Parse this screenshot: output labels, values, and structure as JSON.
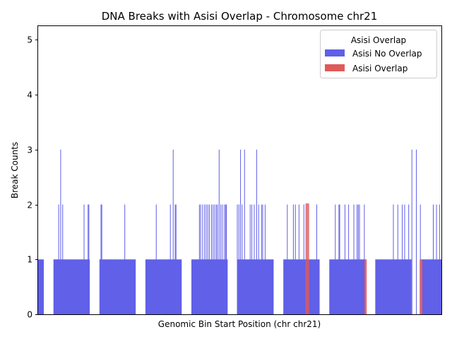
{
  "chart_data": {
    "type": "bar",
    "title": "DNA Breaks with Asisi Overlap - Chromosome chr21",
    "xlabel": "Genomic Bin Start Position (chr chr21)",
    "ylabel": "Break Counts",
    "ylim": [
      0,
      5.25
    ],
    "yticks": [
      "0",
      "1",
      "2",
      "3",
      "4",
      "5"
    ],
    "legend": {
      "title": "Asisi Overlap",
      "placement": "top-right",
      "entries": [
        {
          "label": "Asisi No Overlap",
          "color": "#6060e8"
        },
        {
          "label": "Asisi Overlap",
          "color": "#e05a5a"
        }
      ]
    },
    "colors": {
      "no_overlap": "#6060e8",
      "overlap": "#e05a5a"
    },
    "x_range": [
      0,
      1000
    ],
    "blocks_no_overlap": [
      {
        "start": 0,
        "end": 14,
        "value": 1
      },
      {
        "start": 38,
        "end": 128,
        "value": 1
      },
      {
        "start": 152,
        "end": 242,
        "value": 1
      },
      {
        "start": 266,
        "end": 356,
        "value": 1
      },
      {
        "start": 380,
        "end": 470,
        "value": 1
      },
      {
        "start": 494,
        "end": 584,
        "value": 1
      },
      {
        "start": 608,
        "end": 698,
        "value": 1
      },
      {
        "start": 722,
        "end": 812,
        "value": 1
      },
      {
        "start": 836,
        "end": 926,
        "value": 1
      },
      {
        "start": 950,
        "end": 1000,
        "value": 1
      }
    ],
    "spikes_no_overlap": [
      {
        "x": 50,
        "value": 2
      },
      {
        "x": 55,
        "value": 3
      },
      {
        "x": 60,
        "value": 2
      },
      {
        "x": 113,
        "value": 2
      },
      {
        "x": 123,
        "value": 2
      },
      {
        "x": 125,
        "value": 2
      },
      {
        "x": 155,
        "value": 2
      },
      {
        "x": 157,
        "value": 2
      },
      {
        "x": 214,
        "value": 2
      },
      {
        "x": 292,
        "value": 2
      },
      {
        "x": 327,
        "value": 2
      },
      {
        "x": 334,
        "value": 3
      },
      {
        "x": 339,
        "value": 2
      },
      {
        "x": 341,
        "value": 2
      },
      {
        "x": 399,
        "value": 2
      },
      {
        "x": 402,
        "value": 2
      },
      {
        "x": 407,
        "value": 2
      },
      {
        "x": 412,
        "value": 2
      },
      {
        "x": 416,
        "value": 2
      },
      {
        "x": 420,
        "value": 2
      },
      {
        "x": 424,
        "value": 2
      },
      {
        "x": 429,
        "value": 2
      },
      {
        "x": 433,
        "value": 2
      },
      {
        "x": 437,
        "value": 2
      },
      {
        "x": 441,
        "value": 2
      },
      {
        "x": 444,
        "value": 2
      },
      {
        "x": 448,
        "value": 3
      },
      {
        "x": 452,
        "value": 2
      },
      {
        "x": 456,
        "value": 2
      },
      {
        "x": 461,
        "value": 2
      },
      {
        "x": 464,
        "value": 2
      },
      {
        "x": 466,
        "value": 2
      },
      {
        "x": 493,
        "value": 2
      },
      {
        "x": 497,
        "value": 2
      },
      {
        "x": 501,
        "value": 3
      },
      {
        "x": 505,
        "value": 2
      },
      {
        "x": 511,
        "value": 3
      },
      {
        "x": 525,
        "value": 2
      },
      {
        "x": 529,
        "value": 2
      },
      {
        "x": 535,
        "value": 2
      },
      {
        "x": 541,
        "value": 3
      },
      {
        "x": 546,
        "value": 2
      },
      {
        "x": 553,
        "value": 2
      },
      {
        "x": 556,
        "value": 2
      },
      {
        "x": 562,
        "value": 2
      },
      {
        "x": 617,
        "value": 2
      },
      {
        "x": 632,
        "value": 2
      },
      {
        "x": 637,
        "value": 2
      },
      {
        "x": 646,
        "value": 2
      },
      {
        "x": 658,
        "value": 2
      },
      {
        "x": 690,
        "value": 2
      },
      {
        "x": 736,
        "value": 2
      },
      {
        "x": 745,
        "value": 2
      },
      {
        "x": 769,
        "value": 2
      },
      {
        "x": 760,
        "value": 2
      },
      {
        "x": 782,
        "value": 2
      },
      {
        "x": 747,
        "value": 2
      },
      {
        "x": 790,
        "value": 2
      },
      {
        "x": 793,
        "value": 2
      },
      {
        "x": 796,
        "value": 2
      },
      {
        "x": 808,
        "value": 2
      },
      {
        "x": 880,
        "value": 2
      },
      {
        "x": 891,
        "value": 2
      },
      {
        "x": 902,
        "value": 2
      },
      {
        "x": 908,
        "value": 2
      },
      {
        "x": 918,
        "value": 2
      },
      {
        "x": 926,
        "value": 3
      },
      {
        "x": 937,
        "value": 3
      },
      {
        "x": 947,
        "value": 2
      },
      {
        "x": 979,
        "value": 2
      },
      {
        "x": 987,
        "value": 2
      },
      {
        "x": 995,
        "value": 2
      }
    ],
    "blocks_overlap": [
      {
        "start": 663,
        "end": 672,
        "value": 2.02
      },
      {
        "start": 809,
        "end": 815,
        "value": 1
      },
      {
        "start": 946,
        "end": 953,
        "value": 1
      }
    ]
  }
}
